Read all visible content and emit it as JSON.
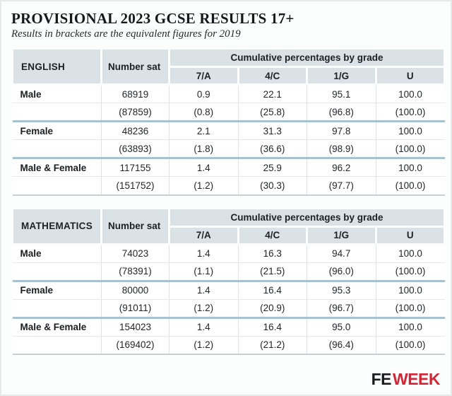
{
  "header": {
    "title": "PROVISIONAL 2023 GCSE RESULTS 17+",
    "subtitle": "Results in brackets are the equivalent figures for 2019"
  },
  "labels": {
    "number_sat": "Number sat",
    "grades_header": "Cumulative percentages by grade",
    "grade_cols": [
      "7/A",
      "4/C",
      "1/G",
      "U"
    ]
  },
  "chart_data": [
    {
      "type": "table",
      "subject": "ENGLISH",
      "columns": [
        "",
        "Number sat",
        "7/A",
        "4/C",
        "1/G",
        "U"
      ],
      "rows": [
        [
          "Male",
          "68919",
          "0.9",
          "22.1",
          "95.1",
          "100.0"
        ],
        [
          "",
          "(87859)",
          "(0.8)",
          "(25.8)",
          "(96.8)",
          "(100.0)"
        ],
        [
          "Female",
          "48236",
          "2.1",
          "31.3",
          "97.8",
          "100.0"
        ],
        [
          "",
          "(63893)",
          "(1.8)",
          "(36.6)",
          "(98.9)",
          "(100.0)"
        ],
        [
          "Male & Female",
          "117155",
          "1.4",
          "25.9",
          "96.2",
          "100.0"
        ],
        [
          "",
          "(151752)",
          "(1.2)",
          "(30.3)",
          "(97.7)",
          "(100.0)"
        ]
      ]
    },
    {
      "type": "table",
      "subject": "MATHEMATICS",
      "columns": [
        "",
        "Number sat",
        "7/A",
        "4/C",
        "1/G",
        "U"
      ],
      "rows": [
        [
          "Male",
          "74023",
          "1.4",
          "16.3",
          "94.7",
          "100.0"
        ],
        [
          "",
          "(78391)",
          "(1.1)",
          "(21.5)",
          "(96.0)",
          "(100.0)"
        ],
        [
          "Female",
          "80000",
          "1.4",
          "16.4",
          "95.3",
          "100.0"
        ],
        [
          "",
          "(91011)",
          "(1.2)",
          "(20.9)",
          "(96.7)",
          "(100.0)"
        ],
        [
          "Male & Female",
          "154023",
          "1.4",
          "16.4",
          "95.0",
          "100.0"
        ],
        [
          "",
          "(169402)",
          "(1.2)",
          "(21.2)",
          "(96.4)",
          "(100.0)"
        ]
      ]
    }
  ],
  "footer": {
    "fe": "FE",
    "week": "WEEK"
  },
  "colors": {
    "header_bg": "#dbe2e6",
    "group_separator": "#a6c2d0",
    "logo_red": "#d32535",
    "text": "#1e2327"
  }
}
